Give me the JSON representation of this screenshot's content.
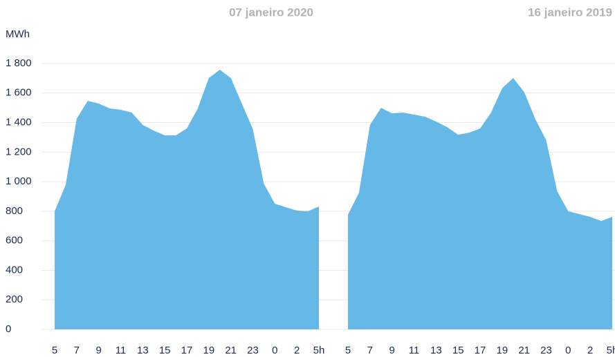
{
  "chart_data": [
    {
      "type": "area",
      "title": "07 janeiro 2020",
      "y_label": "MWh",
      "color": "#66b8e6",
      "categories": [
        "5",
        null,
        "7",
        null,
        "9",
        null,
        "11",
        null,
        "13",
        null,
        "15",
        null,
        "17",
        null,
        "19",
        null,
        "21",
        null,
        "23",
        null,
        "0",
        null,
        "2",
        null,
        "5h"
      ],
      "values": [
        800,
        977,
        1426,
        1547,
        1529,
        1496,
        1487,
        1468,
        1384,
        1346,
        1314,
        1314,
        1360,
        1496,
        1702,
        1758,
        1702,
        1529,
        1356,
        986,
        851,
        827,
        804,
        800,
        832
      ],
      "ylim": [
        0,
        1800
      ],
      "yticks": [
        0,
        200,
        400,
        600,
        800,
        {
          "value": 1000,
          "label": "1 000"
        },
        {
          "value": 1200,
          "label": "1 200"
        },
        {
          "value": 1400,
          "label": "1 400"
        },
        {
          "value": 1600,
          "label": "1 600"
        },
        {
          "value": 1800,
          "label": "1 800"
        }
      ],
      "grid": true
    },
    {
      "type": "area",
      "title": "16 janeiro 2019",
      "color": "#66b8e6",
      "categories": [
        "5",
        null,
        "7",
        null,
        "9",
        null,
        "11",
        null,
        "13",
        null,
        "15",
        null,
        "17",
        null,
        "19",
        null,
        "21",
        null,
        "23",
        null,
        "0",
        null,
        "2",
        null,
        "5h"
      ],
      "values": [
        776,
        926,
        1384,
        1500,
        1463,
        1468,
        1454,
        1440,
        1407,
        1370,
        1318,
        1332,
        1360,
        1468,
        1632,
        1702,
        1608,
        1426,
        1281,
        935,
        800,
        781,
        762,
        734,
        762
      ],
      "ylim": [
        0,
        1800
      ]
    }
  ]
}
